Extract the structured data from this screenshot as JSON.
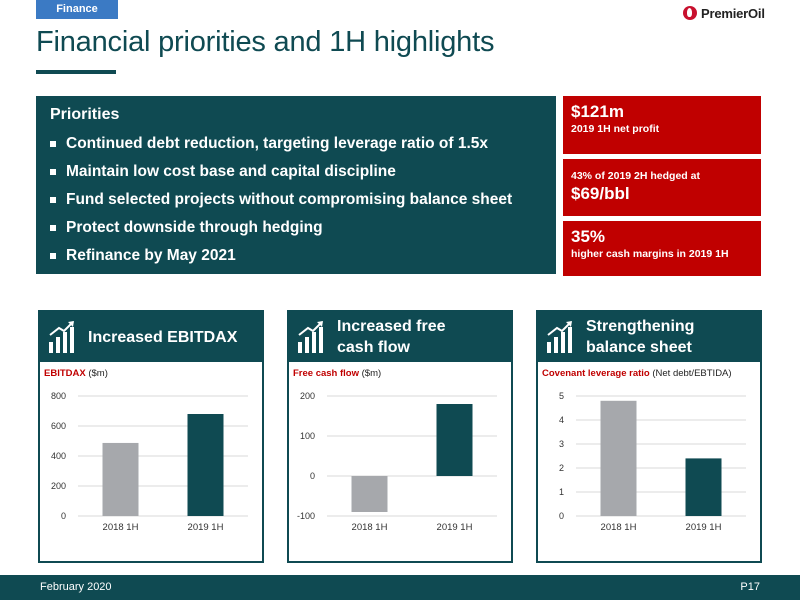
{
  "section_tag": "Finance",
  "logo": {
    "text": "PremierOil"
  },
  "title": "Financial priorities and 1H highlights",
  "priorities": {
    "heading": "Priorities",
    "items": [
      "Continued debt reduction, targeting leverage ratio of 1.5x",
      "Maintain low cost base and capital discipline",
      "Fund selected projects without compromising balance sheet",
      "Protect downside through hedging",
      "Refinance by May 2021"
    ]
  },
  "kpis": [
    {
      "big": "$121m",
      "small": "2019 1H net profit"
    },
    {
      "small": "43% of 2019 2H hedged at",
      "big": "$69/bbl"
    },
    {
      "big": "35%",
      "small": "higher cash margins  in 2019 1H"
    }
  ],
  "panels": [
    {
      "title": "Increased EBITDAX",
      "sub_highlight": "EBITDAX",
      "sub_rest": " ($m)"
    },
    {
      "title": "Increased free cash flow",
      "sub_highlight": "Free cash flow",
      "sub_rest": " ($m)"
    },
    {
      "title": "Strengthening balance sheet",
      "sub_highlight": "Covenant leverage ratio",
      "sub_rest": " (Net debt/EBTIDA)"
    }
  ],
  "colors": {
    "primary": "#0f4a52",
    "accent": "#c00000",
    "tag": "#3b7ac4",
    "bar_prior": "#a6a8ac",
    "bar_current": "#0f4a52"
  },
  "icons": {
    "panel": "growth-chart-icon",
    "logo": "premier-oil-drop-icon"
  },
  "chart_data": [
    {
      "type": "bar",
      "categories": [
        "2018 1H",
        "2019 1H"
      ],
      "values": [
        487,
        680
      ],
      "ylim": [
        0,
        800
      ],
      "yticks": [
        "0",
        "200",
        "400",
        "600",
        "800"
      ],
      "grid": true
    },
    {
      "type": "bar",
      "categories": [
        "2018 1H",
        "2019 1H"
      ],
      "values": [
        -90,
        180
      ],
      "ylim": [
        -100,
        200
      ],
      "yticks": [
        "-100",
        "0",
        "100",
        "200"
      ],
      "grid": true
    },
    {
      "type": "bar",
      "categories": [
        "2018 1H",
        "2019 1H"
      ],
      "values": [
        4.8,
        2.4
      ],
      "ylim": [
        0,
        5
      ],
      "yticks": [
        "0",
        "1",
        "2",
        "3",
        "4",
        "5"
      ],
      "grid": true
    }
  ],
  "footer": {
    "date": "February 2020",
    "page": "P17"
  }
}
